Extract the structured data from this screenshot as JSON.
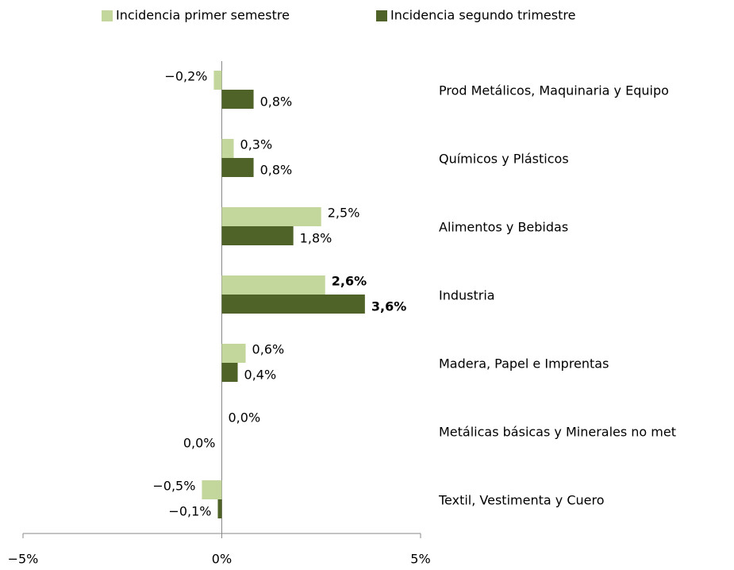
{
  "chart_data": {
    "type": "hbar",
    "categories": [
      "Prod Metálicos, Maquinaria y Equipo",
      "Químicos y Plásticos",
      "Alimentos y Bebidas",
      "Industria",
      "Madera, Papel e Imprentas",
      "Metálicas básicas y Minerales no met",
      "Textil, Vestimenta y Cuero"
    ],
    "bold_category": "Industria",
    "series": [
      {
        "name": "Incidencia primer semestre",
        "color": "#c3d69b",
        "values": [
          -0.2,
          0.3,
          2.5,
          2.6,
          0.6,
          0.0,
          -0.5
        ],
        "value_labels": [
          "−0,2%",
          "0,3%",
          "2,5%",
          "2,6%",
          "0,6%",
          "0,0%",
          "−0,5%"
        ]
      },
      {
        "name": "Incidencia segundo trimestre",
        "color": "#4f6228",
        "values": [
          0.8,
          0.8,
          1.8,
          3.6,
          0.4,
          -0.0,
          -0.1
        ],
        "value_labels": [
          "0,8%",
          "0,8%",
          "1,8%",
          "3,6%",
          "0,4%",
          "0,0%",
          "−0,1%"
        ]
      }
    ],
    "xlim": [
      -5,
      5
    ],
    "xticks": [
      {
        "value": -5,
        "label": "−5%"
      },
      {
        "value": 0,
        "label": "0%"
      },
      {
        "value": 5,
        "label": "5%"
      }
    ],
    "legend": "top"
  }
}
